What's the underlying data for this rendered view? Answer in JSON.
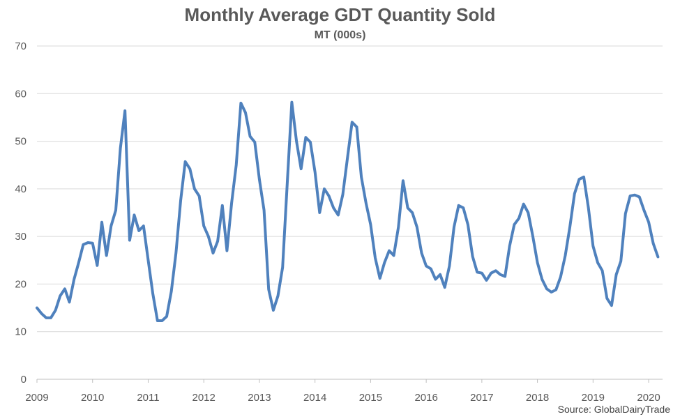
{
  "chart_data": {
    "type": "line",
    "title": "Monthly Average GDT Quantity Sold",
    "subtitle": "MT (000s)",
    "source": "Source: GlobalDairyTrade",
    "ylim": [
      0,
      70
    ],
    "yticks": [
      0,
      10,
      20,
      30,
      40,
      50,
      60,
      70
    ],
    "xlim": [
      2009,
      2020.25
    ],
    "xticks": [
      "2009",
      "2010",
      "2011",
      "2012",
      "2013",
      "2014",
      "2015",
      "2016",
      "2017",
      "2018",
      "2019",
      "2020"
    ],
    "grid": true,
    "legend": "none",
    "line_color": "#4F81BD",
    "series": [
      {
        "values": [
          15.0,
          13.8,
          12.9,
          12.9,
          14.5,
          17.5,
          19.0,
          16.2,
          21.0,
          24.5,
          28.3,
          28.7,
          28.6,
          23.9,
          33.0,
          26.0,
          32.2,
          35.5,
          48.5,
          56.4,
          29.2,
          34.5,
          31.2,
          32.2,
          25.0,
          18.0,
          12.3,
          12.3,
          13.2,
          18.5,
          26.5,
          37.5,
          45.7,
          44.2,
          40.0,
          38.5,
          32.2,
          30.0,
          26.5,
          29.0,
          36.5,
          27.0,
          37.0,
          45.0,
          58.0,
          56.0,
          51.0,
          49.8,
          42.0,
          35.5,
          18.9,
          14.5,
          17.5,
          23.5,
          41.0,
          58.2,
          50.0,
          44.2,
          50.8,
          49.8,
          43.5,
          35.0,
          40.0,
          38.5,
          36.0,
          34.5,
          38.8,
          46.5,
          54.0,
          53.0,
          42.5,
          37.0,
          32.5,
          25.5,
          21.2,
          24.5,
          27.0,
          26.0,
          32.0,
          41.7,
          36.0,
          35.0,
          32.0,
          26.5,
          23.8,
          23.2,
          21.0,
          22.0,
          19.3,
          23.8,
          32.0,
          36.5,
          36.0,
          32.5,
          25.8,
          22.5,
          22.3,
          20.8,
          22.3,
          22.8,
          22.0,
          21.6,
          28.0,
          32.5,
          33.8,
          36.8,
          35.0,
          30.0,
          24.5,
          21.0,
          19.0,
          18.3,
          18.8,
          21.5,
          26.0,
          32.0,
          39.0,
          42.0,
          42.5,
          36.0,
          28.0,
          24.5,
          22.8,
          17.0,
          15.5,
          22.0,
          24.8,
          34.8,
          38.5,
          38.7,
          38.3,
          35.5,
          33.0,
          28.5,
          25.7
        ]
      }
    ]
  }
}
